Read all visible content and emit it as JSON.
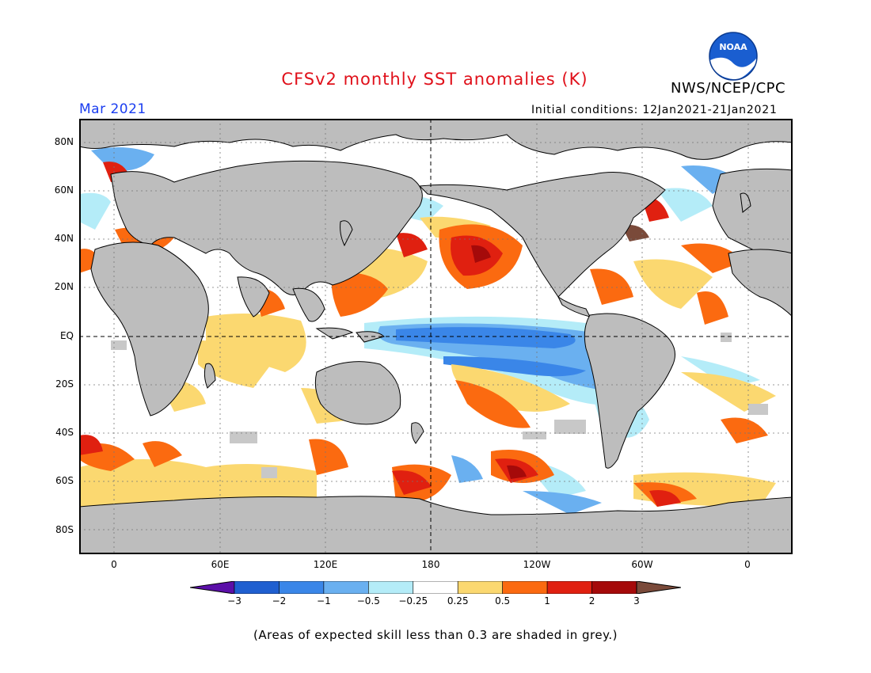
{
  "title": "CFSv2 monthly SST anomalies (K)",
  "agency": "NWS/NCEP/CPC",
  "logo_text": "NOAA",
  "valid_month": "Mar 2021",
  "initial_conditions": "Initial conditions: 12Jan2021-21Jan2021",
  "lat_labels": [
    "80N",
    "60N",
    "40N",
    "20N",
    "EQ",
    "20S",
    "40S",
    "60S",
    "80S"
  ],
  "lon_labels": [
    "0",
    "60E",
    "120E",
    "180",
    "120W",
    "60W",
    "0"
  ],
  "colorbar": {
    "labels": [
      "-3",
      "-2",
      "-1",
      "-0.5",
      "-0.25",
      "0.25",
      "0.5",
      "1",
      "2",
      "3"
    ],
    "colors": [
      "#5b0fa8",
      "#1f5fd0",
      "#3a86e8",
      "#6ab0f0",
      "#b4ecf8",
      "#ffffff",
      "#fbd870",
      "#fb6a10",
      "#e02010",
      "#a50a0a",
      "#7a4a3a"
    ]
  },
  "footnote": "(Areas of expected skill less than 0.3 are shaded in grey.)",
  "colors": {
    "land": "#bdbdbd",
    "title": "#e0101a",
    "month": "#1a3df0"
  }
}
